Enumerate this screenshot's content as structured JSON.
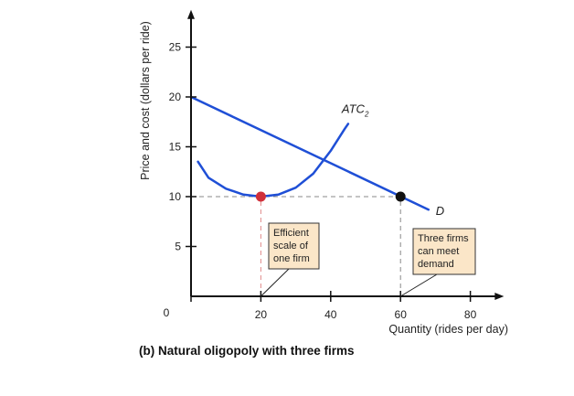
{
  "chart_data": {
    "type": "line",
    "caption": "(b) Natural oligopoly with three firms",
    "xlabel": "Quantity (rides per day)",
    "ylabel": "Price and cost (dollars per ride)",
    "xlim": [
      0,
      87
    ],
    "ylim": [
      0,
      28
    ],
    "x_ticks": [
      0,
      20,
      40,
      60,
      80
    ],
    "y_ticks": [
      5,
      10,
      15,
      20,
      25
    ],
    "origin_label": "0",
    "highlight_x_tick": 20,
    "series": [
      {
        "name": "D",
        "color": "#1f4fd6",
        "points": [
          [
            0,
            20
          ],
          [
            68,
            8.7
          ]
        ]
      },
      {
        "name": "ATC",
        "subscript": "2",
        "color": "#1f4fd6",
        "points": [
          [
            2,
            13.5
          ],
          [
            5,
            11.9
          ],
          [
            10,
            10.8
          ],
          [
            15,
            10.2
          ],
          [
            20,
            10.0
          ],
          [
            25,
            10.2
          ],
          [
            30,
            10.9
          ],
          [
            35,
            12.3
          ],
          [
            40,
            14.6
          ],
          [
            44,
            16.8
          ],
          [
            45,
            17.3
          ]
        ]
      }
    ],
    "points": [
      {
        "x": 20,
        "y": 10,
        "color": "#d0303a"
      },
      {
        "x": 60,
        "y": 10,
        "color": "#111111"
      }
    ],
    "reference_lines": [
      {
        "from": [
          0,
          10
        ],
        "to": [
          60,
          10
        ],
        "color": "#888888"
      },
      {
        "from": [
          20,
          0
        ],
        "to": [
          20,
          10
        ],
        "color": "#e08a8a"
      },
      {
        "from": [
          60,
          0
        ],
        "to": [
          60,
          10
        ],
        "color": "#888888"
      }
    ],
    "annotations": [
      {
        "lines": [
          "Efficient",
          "scale of",
          "one firm"
        ],
        "anchor": [
          20,
          0
        ]
      },
      {
        "lines": [
          "Three firms",
          "can meet",
          "demand"
        ],
        "anchor": [
          60,
          0
        ]
      }
    ]
  },
  "colors": {
    "axis": "#111111",
    "note_fill": "#fbe6c8",
    "highlight_tick": "#d0303a"
  }
}
